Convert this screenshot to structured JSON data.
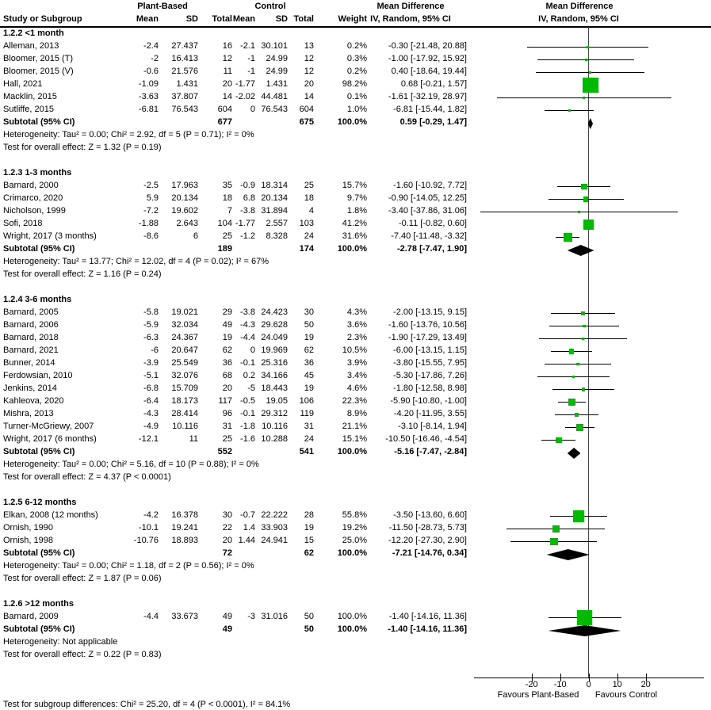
{
  "header": {
    "col1_title": "Study or Subgroup",
    "group1_title": "Plant-Based",
    "group2_title": "Control",
    "mean_label": "Mean",
    "sd_label": "SD",
    "total_label": "Total",
    "weight_label": "Weight",
    "md_title": "Mean Difference",
    "md_subtitle": "IV, Random, 95% CI",
    "plot_md_title": "Mean Difference",
    "plot_md_subtitle": "IV, Random, 95% CI"
  },
  "chart_data": {
    "type": "scatter",
    "title": "Forest plot: Mean Difference, IV, Random, 95% CI, Plant-Based vs Control",
    "x_axis": {
      "ticks": [
        -20,
        -10,
        0,
        10,
        20
      ],
      "range": [
        -40,
        40
      ],
      "zero_line_at": 0
    },
    "favours_left": "Favours Plant-Based",
    "favours_right": "Favours Control",
    "marker_color": "#00b900",
    "diamond_color": "#000000",
    "footer": "Test for subgroup differences: Chi² = 25.20, df = 4 (P < 0.0001), I² = 84.1%",
    "groups": [
      {
        "label": "1.2.2 <1 month",
        "studies": [
          {
            "study": "Alleman, 2013",
            "pb_mean": "-2.4",
            "pb_sd": "27.437",
            "pb_total": "16",
            "c_mean": "-2.1",
            "c_sd": "30.101",
            "c_total": "13",
            "weight": "0.2%",
            "weight_pct": 0.2,
            "md": -0.3,
            "ci_low": -21.48,
            "ci_high": 20.88,
            "md_text": "-0.30 [-21.48, 20.88]"
          },
          {
            "study": "Bloomer, 2015 (T)",
            "pb_mean": "-2",
            "pb_sd": "16.413",
            "pb_total": "12",
            "c_mean": "-1",
            "c_sd": "24.99",
            "c_total": "12",
            "weight": "0.3%",
            "weight_pct": 0.3,
            "md": -1.0,
            "ci_low": -17.92,
            "ci_high": 15.92,
            "md_text": "-1.00 [-17.92, 15.92]"
          },
          {
            "study": "Bloomer, 2015 (V)",
            "pb_mean": "-0.6",
            "pb_sd": "21.576",
            "pb_total": "11",
            "c_mean": "-1",
            "c_sd": "24.99",
            "c_total": "12",
            "weight": "0.2%",
            "weight_pct": 0.2,
            "md": 0.4,
            "ci_low": -18.64,
            "ci_high": 19.44,
            "md_text": "0.40 [-18.64, 19.44]"
          },
          {
            "study": "Hall, 2021",
            "pb_mean": "-1.09",
            "pb_sd": "1.431",
            "pb_total": "20",
            "c_mean": "-1.77",
            "c_sd": "1.431",
            "c_total": "20",
            "weight": "98.2%",
            "weight_pct": 98.2,
            "md": 0.68,
            "ci_low": -0.21,
            "ci_high": 1.57,
            "md_text": "0.68 [-0.21, 1.57]"
          },
          {
            "study": "Macklin, 2015",
            "pb_mean": "-3.63",
            "pb_sd": "37.807",
            "pb_total": "14",
            "c_mean": "-2.02",
            "c_sd": "44.481",
            "c_total": "14",
            "weight": "0.1%",
            "weight_pct": 0.1,
            "md": -1.61,
            "ci_low": -32.19,
            "ci_high": 28.97,
            "md_text": "-1.61 [-32.19, 28.97]"
          },
          {
            "study": "Sutliffe, 2015",
            "pb_mean": "-6.81",
            "pb_sd": "76.543",
            "pb_total": "604",
            "c_mean": "0",
            "c_sd": "76.543",
            "c_total": "604",
            "weight": "1.0%",
            "weight_pct": 1.0,
            "md": -6.81,
            "ci_low": -15.44,
            "ci_high": 1.82,
            "md_text": "-6.81 [-15.44, 1.82]"
          }
        ],
        "subtotal": {
          "label": "Subtotal (95% CI)",
          "pb_total": "677",
          "c_total": "675",
          "weight": "100.0%",
          "md": 0.59,
          "ci_low": -0.29,
          "ci_high": 1.47,
          "md_text": "0.59 [-0.29, 1.47]"
        },
        "heterogeneity": "Heterogeneity: Tau² = 0.00; Chi² = 2.92, df = 5 (P = 0.71); I² = 0%",
        "effect_test": "Test for overall effect: Z = 1.32 (P = 0.19)"
      },
      {
        "label": "1.2.3 1-3 months",
        "studies": [
          {
            "study": "Barnard, 2000",
            "pb_mean": "-2.5",
            "pb_sd": "17.963",
            "pb_total": "35",
            "c_mean": "-0.9",
            "c_sd": "18.314",
            "c_total": "25",
            "weight": "15.7%",
            "weight_pct": 15.7,
            "md": -1.6,
            "ci_low": -10.92,
            "ci_high": 7.72,
            "md_text": "-1.60 [-10.92, 7.72]"
          },
          {
            "study": "Crimarco, 2020",
            "pb_mean": "5.9",
            "pb_sd": "20.134",
            "pb_total": "18",
            "c_mean": "6.8",
            "c_sd": "20.134",
            "c_total": "18",
            "weight": "9.7%",
            "weight_pct": 9.7,
            "md": -0.9,
            "ci_low": -14.05,
            "ci_high": 12.25,
            "md_text": "-0.90 [-14.05, 12.25]"
          },
          {
            "study": "Nicholson, 1999",
            "pb_mean": "-7.2",
            "pb_sd": "19.602",
            "pb_total": "7",
            "c_mean": "-3.8",
            "c_sd": "31.894",
            "c_total": "4",
            "weight": "1.8%",
            "weight_pct": 1.8,
            "md": -3.4,
            "ci_low": -37.86,
            "ci_high": 31.06,
            "md_text": "-3.40 [-37.86, 31.06]"
          },
          {
            "study": "Sofi, 2018",
            "pb_mean": "-1.88",
            "pb_sd": "2.643",
            "pb_total": "104",
            "c_mean": "-1.77",
            "c_sd": "2.557",
            "c_total": "103",
            "weight": "41.2%",
            "weight_pct": 41.2,
            "md": -0.11,
            "ci_low": -0.82,
            "ci_high": 0.6,
            "md_text": "-0.11 [-0.82, 0.60]"
          },
          {
            "study": "Wright, 2017 (3 months)",
            "pb_mean": "-8.6",
            "pb_sd": "6",
            "pb_total": "25",
            "c_mean": "-1.2",
            "c_sd": "8.328",
            "c_total": "24",
            "weight": "31.6%",
            "weight_pct": 31.6,
            "md": -7.4,
            "ci_low": -11.48,
            "ci_high": -3.32,
            "md_text": "-7.40 [-11.48, -3.32]"
          }
        ],
        "subtotal": {
          "label": "Subtotal (95% CI)",
          "pb_total": "189",
          "c_total": "174",
          "weight": "100.0%",
          "md": -2.78,
          "ci_low": -7.47,
          "ci_high": 1.9,
          "md_text": "-2.78 [-7.47, 1.90]"
        },
        "heterogeneity": "Heterogeneity: Tau² = 13.77; Chi² = 12.02, df = 4 (P = 0.02); I² = 67%",
        "effect_test": "Test for overall effect: Z = 1.16 (P = 0.24)"
      },
      {
        "label": "1.2.4 3-6 months",
        "studies": [
          {
            "study": "Barnard, 2005",
            "pb_mean": "-5.8",
            "pb_sd": "19.021",
            "pb_total": "29",
            "c_mean": "-3.8",
            "c_sd": "24.423",
            "c_total": "30",
            "weight": "4.3%",
            "weight_pct": 4.3,
            "md": -2.0,
            "ci_low": -13.15,
            "ci_high": 9.15,
            "md_text": "-2.00 [-13.15, 9.15]"
          },
          {
            "study": "Barnard, 2006",
            "pb_mean": "-5.9",
            "pb_sd": "32.034",
            "pb_total": "49",
            "c_mean": "-4.3",
            "c_sd": "29.628",
            "c_total": "50",
            "weight": "3.6%",
            "weight_pct": 3.6,
            "md": -1.6,
            "ci_low": -13.76,
            "ci_high": 10.56,
            "md_text": "-1.60 [-13.76, 10.56]"
          },
          {
            "study": "Barnard, 2018",
            "pb_mean": "-6.3",
            "pb_sd": "24.367",
            "pb_total": "19",
            "c_mean": "-4.4",
            "c_sd": "24.049",
            "c_total": "19",
            "weight": "2.3%",
            "weight_pct": 2.3,
            "md": -1.9,
            "ci_low": -17.29,
            "ci_high": 13.49,
            "md_text": "-1.90 [-17.29, 13.49]"
          },
          {
            "study": "Barnard, 2021",
            "pb_mean": "-6",
            "pb_sd": "20.647",
            "pb_total": "62",
            "c_mean": "0",
            "c_sd": "19.969",
            "c_total": "62",
            "weight": "10.5%",
            "weight_pct": 10.5,
            "md": -6.0,
            "ci_low": -13.15,
            "ci_high": 1.15,
            "md_text": "-6.00 [-13.15, 1.15]"
          },
          {
            "study": "Bunner, 2014",
            "pb_mean": "-3.9",
            "pb_sd": "25.549",
            "pb_total": "36",
            "c_mean": "-0.1",
            "c_sd": "25.316",
            "c_total": "36",
            "weight": "3.9%",
            "weight_pct": 3.9,
            "md": -3.8,
            "ci_low": -15.55,
            "ci_high": 7.95,
            "md_text": "-3.80 [-15.55, 7.95]"
          },
          {
            "study": "Ferdowsian, 2010",
            "pb_mean": "-5.1",
            "pb_sd": "32.076",
            "pb_total": "68",
            "c_mean": "0.2",
            "c_sd": "34.166",
            "c_total": "45",
            "weight": "3.4%",
            "weight_pct": 3.4,
            "md": -5.3,
            "ci_low": -17.86,
            "ci_high": 7.26,
            "md_text": "-5.30 [-17.86, 7.26]"
          },
          {
            "study": "Jenkins, 2014",
            "pb_mean": "-6.8",
            "pb_sd": "15.709",
            "pb_total": "20",
            "c_mean": "-5",
            "c_sd": "18.443",
            "c_total": "19",
            "weight": "4.6%",
            "weight_pct": 4.6,
            "md": -1.8,
            "ci_low": -12.58,
            "ci_high": 8.98,
            "md_text": "-1.80 [-12.58, 8.98]"
          },
          {
            "study": "Kahleova, 2020",
            "pb_mean": "-6.4",
            "pb_sd": "18.173",
            "pb_total": "117",
            "c_mean": "-0.5",
            "c_sd": "19.05",
            "c_total": "106",
            "weight": "22.3%",
            "weight_pct": 22.3,
            "md": -5.9,
            "ci_low": -10.8,
            "ci_high": -1.0,
            "md_text": "-5.90 [-10.80, -1.00]"
          },
          {
            "study": "Mishra, 2013",
            "pb_mean": "-4.3",
            "pb_sd": "28.414",
            "pb_total": "96",
            "c_mean": "-0.1",
            "c_sd": "29.312",
            "c_total": "119",
            "weight": "8.9%",
            "weight_pct": 8.9,
            "md": -4.2,
            "ci_low": -11.95,
            "ci_high": 3.55,
            "md_text": "-4.20 [-11.95, 3.55]"
          },
          {
            "study": "Turner-McGriewy, 2007",
            "pb_mean": "-4.9",
            "pb_sd": "10.116",
            "pb_total": "31",
            "c_mean": "-1.8",
            "c_sd": "10.116",
            "c_total": "31",
            "weight": "21.1%",
            "weight_pct": 21.1,
            "md": -3.1,
            "ci_low": -8.14,
            "ci_high": 1.94,
            "md_text": "-3.10 [-8.14, 1.94]"
          },
          {
            "study": "Wright, 2017 (6 months)",
            "pb_mean": "-12.1",
            "pb_sd": "11",
            "pb_total": "25",
            "c_mean": "-1.6",
            "c_sd": "10.288",
            "c_total": "24",
            "weight": "15.1%",
            "weight_pct": 15.1,
            "md": -10.5,
            "ci_low": -16.46,
            "ci_high": -4.54,
            "md_text": "-10.50 [-16.46, -4.54]"
          }
        ],
        "subtotal": {
          "label": "Subtotal (95% CI)",
          "pb_total": "552",
          "c_total": "541",
          "weight": "100.0%",
          "md": -5.16,
          "ci_low": -7.47,
          "ci_high": -2.84,
          "md_text": "-5.16 [-7.47, -2.84]"
        },
        "heterogeneity": "Heterogeneity: Tau² = 0.00; Chi² = 5.16, df = 10 (P = 0.88); I² = 0%",
        "effect_test": "Test for overall effect: Z = 4.37 (P < 0.0001)"
      },
      {
        "label": "1.2.5 6-12 months",
        "studies": [
          {
            "study": "Elkan, 2008 (12 months)",
            "pb_mean": "-4.2",
            "pb_sd": "16.378",
            "pb_total": "30",
            "c_mean": "-0.7",
            "c_sd": "22.222",
            "c_total": "28",
            "weight": "55.8%",
            "weight_pct": 55.8,
            "md": -3.5,
            "ci_low": -13.6,
            "ci_high": 6.6,
            "md_text": "-3.50 [-13.60, 6.60]"
          },
          {
            "study": "Ornish, 1990",
            "pb_mean": "-10.1",
            "pb_sd": "19.241",
            "pb_total": "22",
            "c_mean": "1.4",
            "c_sd": "33.903",
            "c_total": "19",
            "weight": "19.2%",
            "weight_pct": 19.2,
            "md": -11.5,
            "ci_low": -28.73,
            "ci_high": 5.73,
            "md_text": "-11.50 [-28.73, 5.73]"
          },
          {
            "study": "Ornish, 1998",
            "pb_mean": "-10.76",
            "pb_sd": "18.893",
            "pb_total": "20",
            "c_mean": "1.44",
            "c_sd": "24.941",
            "c_total": "15",
            "weight": "25.0%",
            "weight_pct": 25.0,
            "md": -12.2,
            "ci_low": -27.3,
            "ci_high": 2.9,
            "md_text": "-12.20 [-27.30, 2.90]"
          }
        ],
        "subtotal": {
          "label": "Subtotal (95% CI)",
          "pb_total": "72",
          "c_total": "62",
          "weight": "100.0%",
          "md": -7.21,
          "ci_low": -14.76,
          "ci_high": 0.34,
          "md_text": "-7.21 [-14.76, 0.34]"
        },
        "heterogeneity": "Heterogeneity: Tau² = 0.00; Chi² = 1.18, df = 2 (P = 0.56); I² = 0%",
        "effect_test": "Test for overall effect: Z = 1.87 (P = 0.06)"
      },
      {
        "label": "1.2.6 >12 months",
        "studies": [
          {
            "study": "Barnard, 2009",
            "pb_mean": "-4.4",
            "pb_sd": "33.673",
            "pb_total": "49",
            "c_mean": "-3",
            "c_sd": "31.016",
            "c_total": "50",
            "weight": "100.0%",
            "weight_pct": 100.0,
            "md": -1.4,
            "ci_low": -14.16,
            "ci_high": 11.36,
            "md_text": "-1.40 [-14.16, 11.36]"
          }
        ],
        "subtotal": {
          "label": "Subtotal (95% CI)",
          "pb_total": "49",
          "c_total": "50",
          "weight": "100.0%",
          "md": -1.4,
          "ci_low": -14.16,
          "ci_high": 11.36,
          "md_text": "-1.40 [-14.16, 11.36]"
        },
        "heterogeneity": "Heterogeneity: Not applicable",
        "effect_test": "Test for overall effect: Z = 0.22 (P = 0.83)"
      }
    ]
  }
}
